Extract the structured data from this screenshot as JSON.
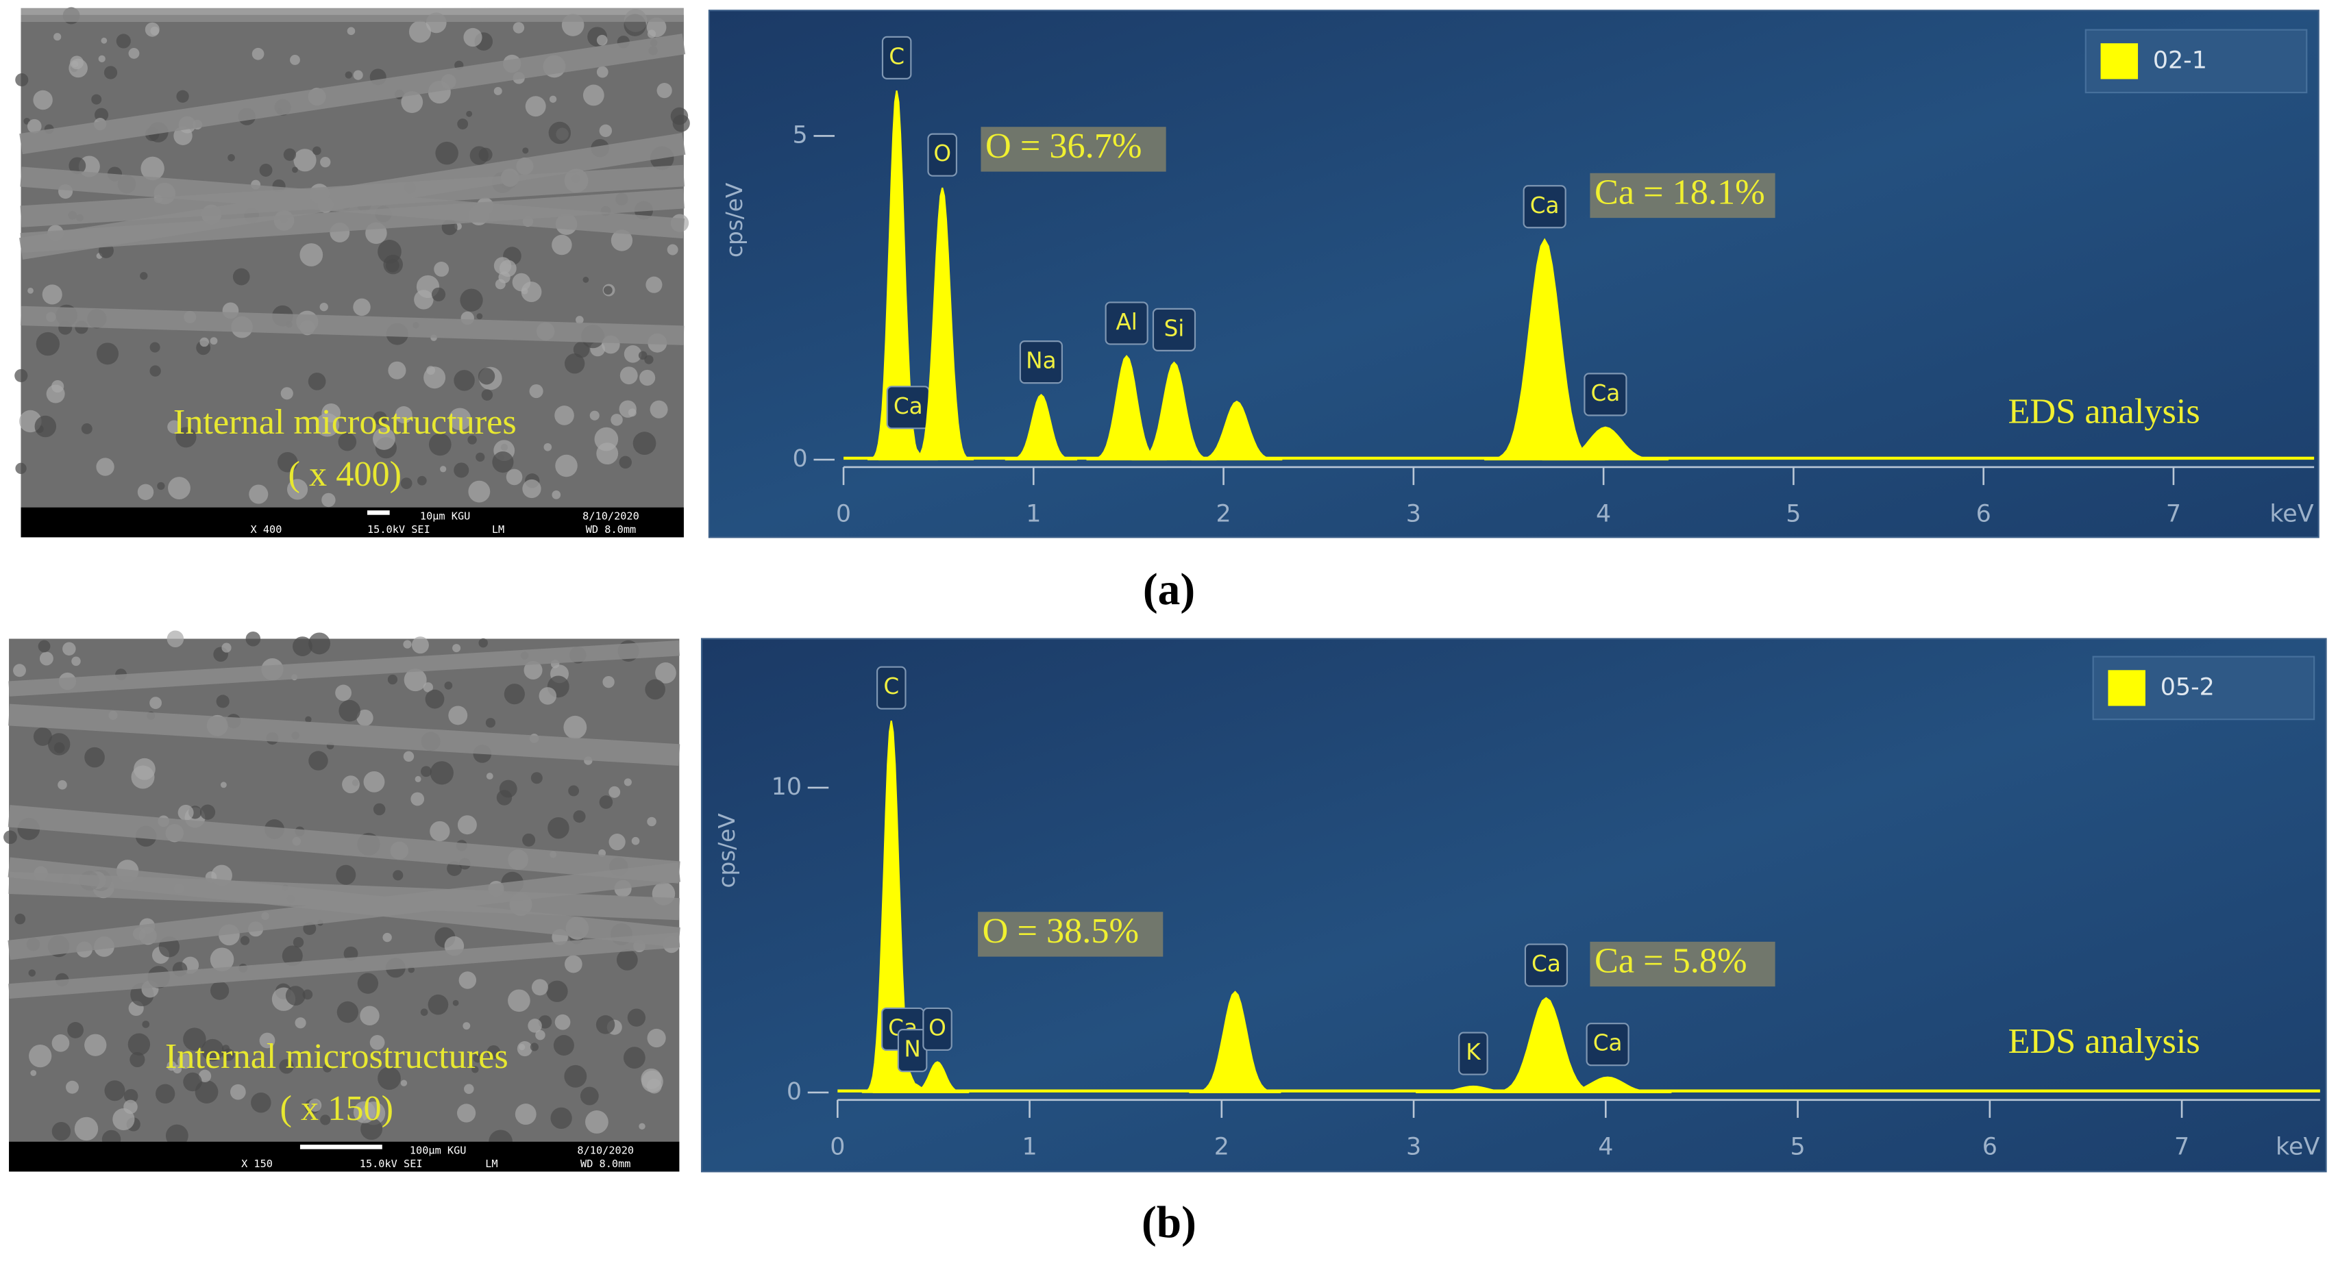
{
  "panels": [
    {
      "label": "(a)",
      "image": {
        "caption": "Internal microstructures",
        "magnification": "( x 400)",
        "info": [
          "X 400",
          "15.0kV SEI",
          "10μm KGU",
          "LM",
          "8/10/2020",
          "WD 8.0mm"
        ]
      }
    },
    {
      "label": "(b)",
      "image": {
        "caption": "Internal microstructures",
        "magnification": "( x 150)",
        "info": [
          "X 150",
          "15.0kV SEI",
          "100μm KGU",
          "LM",
          "8/10/2020",
          "WD 8.0mm"
        ]
      }
    }
  ],
  "chart_data": [
    {
      "type": "area",
      "x_label": "keV",
      "y_label": "cps/eV",
      "xlim": [
        0,
        7.74
      ],
      "xticks": [
        0,
        1,
        2,
        3,
        4,
        5,
        6,
        7
      ],
      "ylim": [
        0,
        6.8
      ],
      "yticks": [
        0,
        5
      ],
      "series": [
        {
          "name": "02-1",
          "color": "#ffff00",
          "x": [
            0.28,
            0.34,
            0.52,
            1.04,
            1.49,
            1.74,
            2.07,
            3.69,
            4.01
          ],
          "values": [
            5.7,
            0.3,
            4.2,
            1.0,
            1.6,
            1.5,
            0.9,
            3.4,
            0.5
          ],
          "labels": [
            "C",
            "Ca",
            "O",
            "Na",
            "Al",
            "Si",
            null,
            "Ca",
            "Ca"
          ]
        }
      ],
      "annotations": [
        "O = 36.7%",
        "Ca = 18.1%",
        "EDS analysis"
      ]
    },
    {
      "type": "area",
      "x_label": "keV",
      "y_label": "cps/eV",
      "xlim": [
        0,
        7.72
      ],
      "xticks": [
        0,
        1,
        2,
        3,
        4,
        5,
        6,
        7
      ],
      "ylim": [
        0,
        14.3
      ],
      "yticks": [
        0,
        10
      ],
      "series": [
        {
          "name": "05-2",
          "color": "#ffff00",
          "x": [
            0.28,
            0.34,
            0.39,
            0.52,
            2.07,
            3.31,
            3.69,
            4.01
          ],
          "values": [
            12.2,
            1.0,
            0.3,
            1.0,
            3.3,
            0.2,
            3.1,
            0.5
          ],
          "labels": [
            "C",
            "Ca",
            "N",
            "O",
            null,
            "K",
            "Ca",
            "Ca"
          ]
        }
      ],
      "annotations": [
        "O = 38.5%",
        "Ca = 5.8%",
        "EDS analysis"
      ]
    }
  ]
}
